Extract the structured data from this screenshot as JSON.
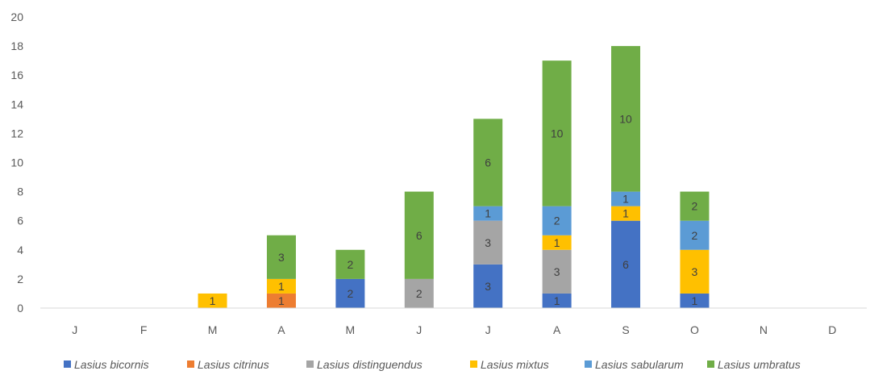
{
  "chart_data": {
    "type": "bar",
    "stacked": true,
    "categories": [
      "J",
      "F",
      "M",
      "A",
      "M",
      "J",
      "J",
      "A",
      "S",
      "O",
      "N",
      "D"
    ],
    "ylim": [
      0,
      20
    ],
    "yticks": [
      0,
      2,
      4,
      6,
      8,
      10,
      12,
      14,
      16,
      18,
      20
    ],
    "grid": false,
    "legend_position": "bottom",
    "series": [
      {
        "name": "Lasius bicornis",
        "color": "#4472C4",
        "values": [
          0,
          0,
          0,
          0,
          2,
          0,
          3,
          1,
          6,
          1,
          0,
          0
        ]
      },
      {
        "name": "Lasius citrinus",
        "color": "#ED7D31",
        "values": [
          0,
          0,
          0,
          1,
          0,
          0,
          0,
          0,
          0,
          0,
          0,
          0
        ]
      },
      {
        "name": "Lasius distinguendus",
        "color": "#A5A5A5",
        "values": [
          0,
          0,
          0,
          0,
          0,
          2,
          3,
          3,
          0,
          0,
          0,
          0
        ]
      },
      {
        "name": "Lasius mixtus",
        "color": "#FFC000",
        "values": [
          0,
          0,
          1,
          1,
          0,
          0,
          0,
          1,
          1,
          3,
          0,
          0
        ]
      },
      {
        "name": "Lasius sabularum",
        "color": "#5B9BD5",
        "values": [
          0,
          0,
          0,
          0,
          0,
          0,
          1,
          2,
          1,
          2,
          0,
          0
        ]
      },
      {
        "name": "Lasius umbratus",
        "color": "#70AD47",
        "values": [
          0,
          0,
          0,
          3,
          2,
          6,
          6,
          10,
          10,
          2,
          0,
          0
        ]
      }
    ]
  }
}
